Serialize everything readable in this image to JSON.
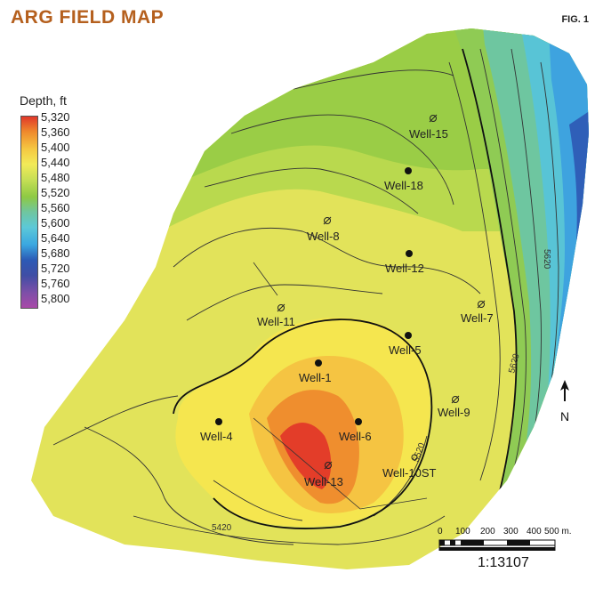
{
  "header": {
    "title": "ARG FIELD MAP",
    "figure_label": "FIG. 1"
  },
  "legend": {
    "title": "Depth, ft",
    "labels": [
      "5,320",
      "5,360",
      "5,400",
      "5,440",
      "5,480",
      "5,520",
      "5,560",
      "5,600",
      "5,640",
      "5,680",
      "5,720",
      "5,760",
      "5,800"
    ],
    "colors": [
      "#e0372a",
      "#ef8a2c",
      "#f5c842",
      "#f2ea58",
      "#c6df56",
      "#8ec943",
      "#6fc6a0",
      "#5cc8d8",
      "#3aa7e0",
      "#2c5ab5",
      "#3f4ea5",
      "#7d4fa8",
      "#a94aa8"
    ]
  },
  "wells": [
    {
      "name": "Well-15",
      "type": "dry"
    },
    {
      "name": "Well-18",
      "type": "producer"
    },
    {
      "name": "Well-8",
      "type": "dry"
    },
    {
      "name": "Well-12",
      "type": "producer"
    },
    {
      "name": "Well-11",
      "type": "dry"
    },
    {
      "name": "Well-7",
      "type": "dry"
    },
    {
      "name": "Well-5",
      "type": "producer"
    },
    {
      "name": "Well-1",
      "type": "producer"
    },
    {
      "name": "Well-9",
      "type": "dry"
    },
    {
      "name": "Well-4",
      "type": "producer"
    },
    {
      "name": "Well-6",
      "type": "producer"
    },
    {
      "name": "Well-13",
      "type": "dry"
    },
    {
      "name": "Well-10ST",
      "type": "dry"
    }
  ],
  "contour_labels": [
    "5420",
    "5620",
    "5620",
    "5520"
  ],
  "north_arrow": {
    "label": "N"
  },
  "scale_bar": {
    "ticks": [
      "0",
      "100",
      "200",
      "300",
      "400",
      "500 m."
    ],
    "ratio": "1:13107"
  },
  "colors": {
    "title": "#b5601e"
  }
}
